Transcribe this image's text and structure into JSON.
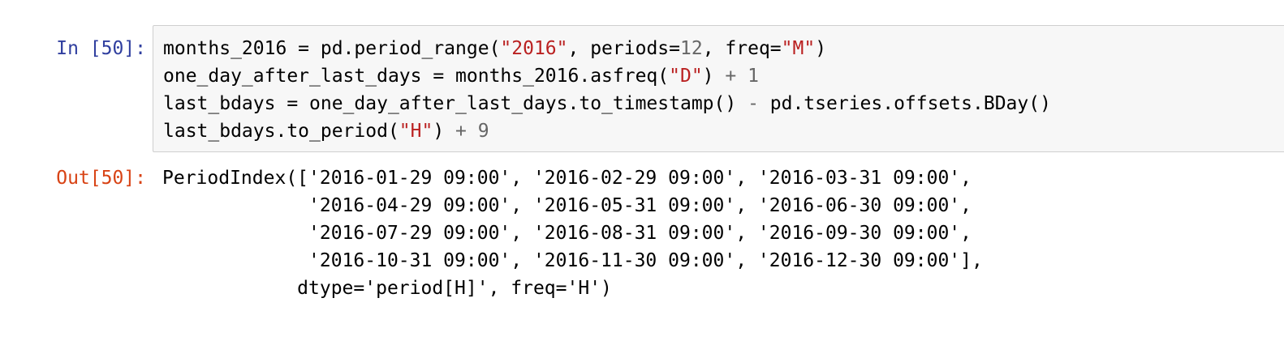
{
  "input_cell": {
    "prompt": "In [50]:",
    "lines": [
      [
        {
          "t": "months_2016 = pd.period_range(",
          "k": "plain"
        },
        {
          "t": "\"2016\"",
          "k": "str"
        },
        {
          "t": ", periods=",
          "k": "plain"
        },
        {
          "t": "12",
          "k": "num"
        },
        {
          "t": ", freq=",
          "k": "plain"
        },
        {
          "t": "\"M\"",
          "k": "str"
        },
        {
          "t": ")",
          "k": "plain"
        }
      ],
      [
        {
          "t": "one_day_after_last_days = months_2016.asfreq(",
          "k": "plain"
        },
        {
          "t": "\"D\"",
          "k": "str"
        },
        {
          "t": ") ",
          "k": "plain"
        },
        {
          "t": "+",
          "k": "op"
        },
        {
          "t": " ",
          "k": "plain"
        },
        {
          "t": "1",
          "k": "num"
        }
      ],
      [
        {
          "t": "last_bdays = one_day_after_last_days.to_timestamp() ",
          "k": "plain"
        },
        {
          "t": "-",
          "k": "op"
        },
        {
          "t": " pd.tseries.offsets.BDay()",
          "k": "plain"
        }
      ],
      [
        {
          "t": "last_bdays.to_period(",
          "k": "plain"
        },
        {
          "t": "\"H\"",
          "k": "str"
        },
        {
          "t": ") ",
          "k": "plain"
        },
        {
          "t": "+",
          "k": "op"
        },
        {
          "t": " ",
          "k": "plain"
        },
        {
          "t": "9",
          "k": "num"
        }
      ]
    ]
  },
  "output_cell": {
    "prompt": "Out[50]:",
    "lines": [
      "PeriodIndex(['2016-01-29 09:00', '2016-02-29 09:00', '2016-03-31 09:00',",
      "             '2016-04-29 09:00', '2016-05-31 09:00', '2016-06-30 09:00',",
      "             '2016-07-29 09:00', '2016-08-31 09:00', '2016-09-30 09:00',",
      "             '2016-10-31 09:00', '2016-11-30 09:00', '2016-12-30 09:00'],",
      "            dtype='period[H]', freq='H')"
    ]
  }
}
